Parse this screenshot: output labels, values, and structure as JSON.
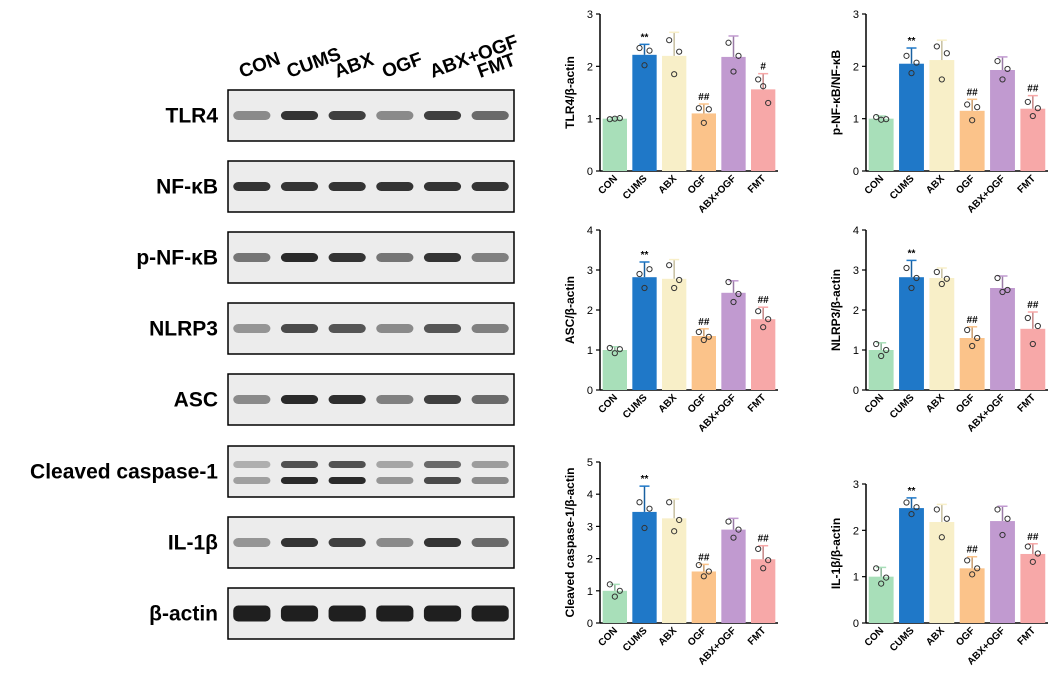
{
  "blot": {
    "lanes": [
      "CON",
      "CUMS",
      "ABX",
      "OGF",
      "ABX+OGF",
      "FMT"
    ],
    "rows": [
      {
        "name": "TLR4",
        "bands": [
          1,
          2
        ],
        "intensity": [
          0.45,
          0.85,
          0.8,
          0.45,
          0.8,
          0.6
        ]
      },
      {
        "name": "NF-κB",
        "bands": [
          1
        ],
        "intensity": [
          0.85,
          0.85,
          0.85,
          0.85,
          0.85,
          0.85
        ]
      },
      {
        "name": "p-NF-κB",
        "bands": [
          1
        ],
        "intensity": [
          0.55,
          0.9,
          0.85,
          0.55,
          0.85,
          0.5
        ]
      },
      {
        "name": "NLRP3",
        "bands": [
          1
        ],
        "intensity": [
          0.4,
          0.75,
          0.7,
          0.45,
          0.7,
          0.5
        ]
      },
      {
        "name": "ASC",
        "bands": [
          1
        ],
        "intensity": [
          0.45,
          0.9,
          0.88,
          0.5,
          0.8,
          0.6
        ]
      },
      {
        "name": "Cleaved caspase-1",
        "bands": [
          2
        ],
        "intensity": [
          0.35,
          0.9,
          0.9,
          0.4,
          0.75,
          0.45
        ]
      },
      {
        "name": "IL-1β",
        "bands": [
          1
        ],
        "intensity": [
          0.4,
          0.85,
          0.8,
          0.45,
          0.85,
          0.6
        ]
      },
      {
        "name": "β-actin",
        "bands": [
          1
        ],
        "intensity": [
          0.95,
          0.95,
          0.95,
          0.95,
          0.95,
          0.95
        ]
      }
    ]
  },
  "colors": {
    "CON": "#a8dfb9",
    "CUMS": "#1f78c8",
    "ABX": "#f8efc8",
    "OGF": "#fbc38a",
    "ABX+OGF": "#c19ad0",
    "FMT": "#f7a8a8"
  },
  "chart_data": [
    {
      "type": "bar",
      "categories": [
        "CON",
        "CUMS",
        "ABX",
        "OGF",
        "ABX+OGF",
        "FMT"
      ],
      "values": [
        1.0,
        2.22,
        2.2,
        1.1,
        2.18,
        1.56
      ],
      "errors": [
        0.02,
        0.2,
        0.45,
        0.18,
        0.4,
        0.3
      ],
      "points": [
        [
          0.99,
          1.0,
          1.01
        ],
        [
          2.35,
          2.02,
          2.3
        ],
        [
          2.5,
          1.85,
          2.28
        ],
        [
          1.2,
          0.92,
          1.18
        ],
        [
          2.45,
          1.9,
          2.2
        ],
        [
          1.75,
          1.62,
          1.3
        ]
      ],
      "significance": [
        "",
        "**",
        "",
        "##",
        "",
        "#"
      ],
      "ylabel": "TLR4/β-actin",
      "ylim": [
        0,
        3
      ],
      "yticks": [
        "0",
        "1",
        "2",
        "3"
      ]
    },
    {
      "type": "bar",
      "categories": [
        "CON",
        "CUMS",
        "ABX",
        "OGF",
        "ABX+OGF",
        "FMT"
      ],
      "values": [
        1.0,
        2.05,
        2.12,
        1.15,
        1.93,
        1.19
      ],
      "errors": [
        0.05,
        0.3,
        0.38,
        0.22,
        0.25,
        0.25
      ],
      "points": [
        [
          1.03,
          0.98,
          0.99
        ],
        [
          2.2,
          1.87,
          2.07
        ],
        [
          2.38,
          1.75,
          2.25
        ],
        [
          1.27,
          0.97,
          1.22
        ],
        [
          2.1,
          1.75,
          1.95
        ],
        [
          1.32,
          1.05,
          1.2
        ]
      ],
      "significance": [
        "",
        "**",
        "",
        "##",
        "",
        "##"
      ],
      "ylabel": "p-NF-κB/NF-κB",
      "ylim": [
        0,
        3
      ],
      "yticks": [
        "0",
        "1",
        "2",
        "3"
      ]
    },
    {
      "type": "bar",
      "categories": [
        "CON",
        "CUMS",
        "ABX",
        "OGF",
        "ABX+OGF",
        "FMT"
      ],
      "values": [
        1.0,
        2.82,
        2.78,
        1.35,
        2.43,
        1.77
      ],
      "errors": [
        0.08,
        0.38,
        0.48,
        0.18,
        0.3,
        0.3
      ],
      "points": [
        [
          1.05,
          0.92,
          1.02
        ],
        [
          2.9,
          2.55,
          3.02
        ],
        [
          3.12,
          2.55,
          2.75
        ],
        [
          1.45,
          1.25,
          1.33
        ],
        [
          2.7,
          2.2,
          2.4
        ],
        [
          1.97,
          1.57,
          1.77
        ]
      ],
      "significance": [
        "",
        "**",
        "",
        "##",
        "",
        "##"
      ],
      "ylabel": "ASC/β-actin",
      "ylim": [
        0,
        4
      ],
      "yticks": [
        "0",
        "1",
        "2",
        "3",
        "4"
      ]
    },
    {
      "type": "bar",
      "categories": [
        "CON",
        "CUMS",
        "ABX",
        "OGF",
        "ABX+OGF",
        "FMT"
      ],
      "values": [
        1.0,
        2.82,
        2.8,
        1.3,
        2.55,
        1.53
      ],
      "errors": [
        0.18,
        0.42,
        0.25,
        0.28,
        0.3,
        0.42
      ],
      "points": [
        [
          1.15,
          0.85,
          1.0
        ],
        [
          3.05,
          2.55,
          2.8
        ],
        [
          2.95,
          2.65,
          2.78
        ],
        [
          1.5,
          1.1,
          1.3
        ],
        [
          2.8,
          2.45,
          2.5
        ],
        [
          1.8,
          1.15,
          1.6
        ]
      ],
      "significance": [
        "",
        "**",
        "",
        "##",
        "",
        "##"
      ],
      "ylabel": "NLRP3/β-actin",
      "ylim": [
        0,
        4
      ],
      "yticks": [
        "0",
        "1",
        "2",
        "3",
        "4"
      ]
    },
    {
      "type": "bar",
      "categories": [
        "CON",
        "CUMS",
        "ABX",
        "OGF",
        "ABX+OGF",
        "FMT"
      ],
      "values": [
        1.0,
        3.45,
        3.25,
        1.6,
        2.9,
        1.98
      ],
      "errors": [
        0.2,
        0.8,
        0.6,
        0.22,
        0.35,
        0.42
      ],
      "points": [
        [
          1.2,
          0.82,
          1.0
        ],
        [
          3.75,
          2.95,
          3.55
        ],
        [
          3.75,
          2.85,
          3.2
        ],
        [
          1.8,
          1.45,
          1.6
        ],
        [
          3.15,
          2.65,
          2.9
        ],
        [
          2.3,
          1.7,
          1.95
        ]
      ],
      "significance": [
        "",
        "**",
        "",
        "##",
        "",
        "##"
      ],
      "ylabel": "Cleaved caspase-1/β-actin",
      "ylim": [
        0,
        5
      ],
      "yticks": [
        "0",
        "1",
        "2",
        "3",
        "4",
        "5"
      ]
    },
    {
      "type": "bar",
      "categories": [
        "CON",
        "CUMS",
        "ABX",
        "OGF",
        "ABX+OGF",
        "FMT"
      ],
      "values": [
        1.0,
        2.48,
        2.18,
        1.18,
        2.2,
        1.49
      ],
      "errors": [
        0.2,
        0.22,
        0.38,
        0.25,
        0.32,
        0.22
      ],
      "points": [
        [
          1.18,
          0.85,
          0.98
        ],
        [
          2.6,
          2.35,
          2.5
        ],
        [
          2.45,
          1.85,
          2.25
        ],
        [
          1.35,
          1.05,
          1.18
        ],
        [
          2.45,
          1.9,
          2.25
        ],
        [
          1.65,
          1.32,
          1.5
        ]
      ],
      "significance": [
        "",
        "**",
        "",
        "##",
        "",
        "##"
      ],
      "ylabel": "IL-1β/β-actin",
      "ylim": [
        0,
        3
      ],
      "yticks": [
        "0",
        "1",
        "2",
        "3"
      ]
    }
  ]
}
